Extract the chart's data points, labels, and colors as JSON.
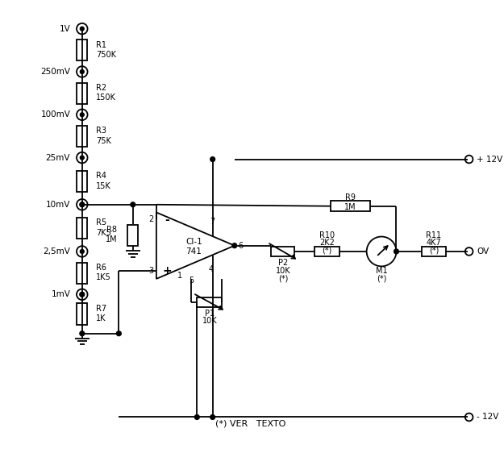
{
  "bg_color": "#ffffff",
  "line_color": "#000000",
  "fig_width": 6.25,
  "fig_height": 5.57,
  "dpi": 100,
  "terminals": {
    "labels": [
      "1V",
      "250mV",
      "100mV",
      "25mV",
      "10mV",
      "2,5mV",
      "1mV"
    ],
    "y": [
      28,
      83,
      138,
      193,
      253,
      313,
      368
    ]
  },
  "resistors_left": [
    {
      "label1": "R1",
      "label2": "750K"
    },
    {
      "label1": "R2",
      "label2": "150K"
    },
    {
      "label1": "R3",
      "label2": "75K"
    },
    {
      "label1": "R4",
      "label2": "15K"
    },
    {
      "label1": "R5",
      "label2": "7K5"
    },
    {
      "label1": "R6",
      "label2": "1K5"
    },
    {
      "label1": "R7",
      "label2": "1K"
    }
  ],
  "note": "(*) VER   TEXTO",
  "plus12": "+ 12V",
  "minus12": "- 12V",
  "ov": "OV"
}
